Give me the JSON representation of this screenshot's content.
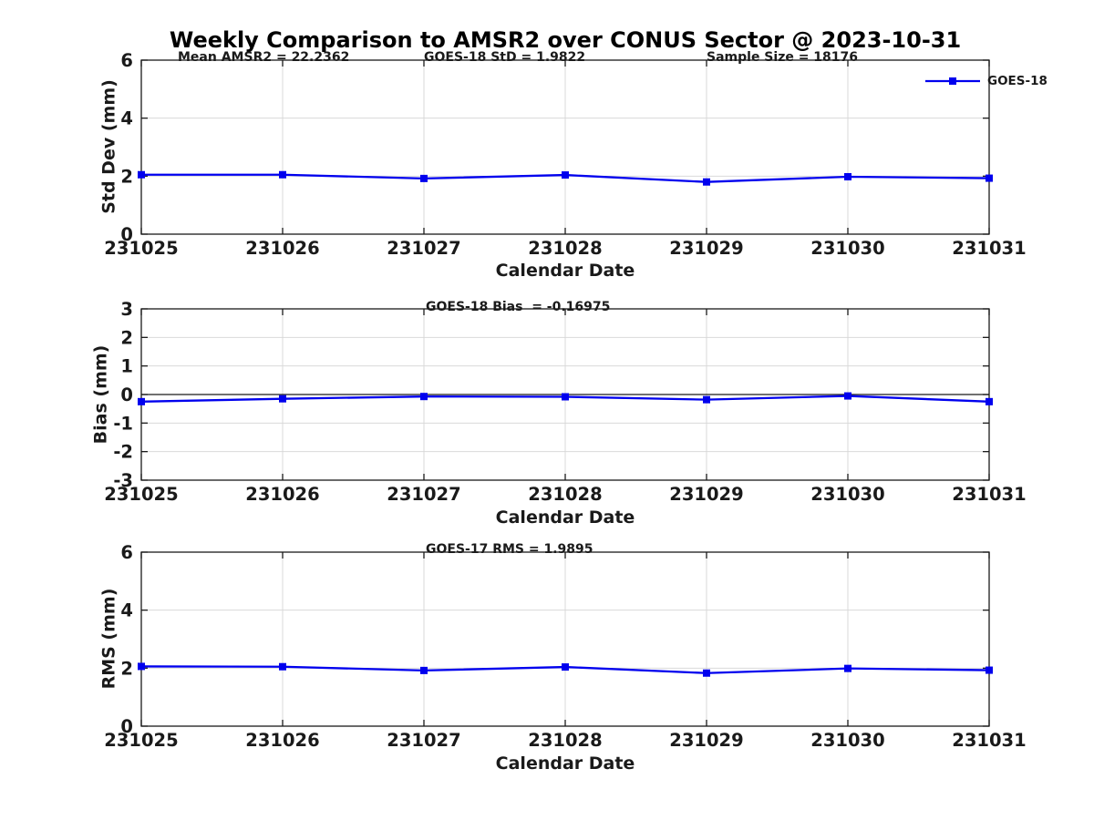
{
  "title": "Weekly Comparison to AMSR2 over CONUS Sector @ 2023-10-31",
  "accent_color": "#0000EE",
  "chart_data": [
    {
      "type": "line",
      "name": "std-dev",
      "categories": [
        "231025",
        "231026",
        "231027",
        "231028",
        "231029",
        "231030",
        "231031"
      ],
      "series": [
        {
          "name": "GOES-18",
          "color": "#0000EE",
          "marker": "square",
          "values": [
            2.05,
            2.05,
            1.92,
            2.04,
            1.8,
            1.98,
            1.93
          ]
        }
      ],
      "annotations": [
        "Mean AMSR2 = 22.2362",
        "GOES-18 StD = 1.9822",
        "Sample Size = 18176"
      ],
      "xlabel": "Calendar Date",
      "ylabel": "Std Dev (mm)",
      "ylim": [
        0,
        6
      ],
      "yticks": [
        0,
        2,
        4,
        6
      ],
      "grid": true,
      "legend_position": "top-right"
    },
    {
      "type": "line",
      "name": "bias",
      "categories": [
        "231025",
        "231026",
        "231027",
        "231028",
        "231029",
        "231030",
        "231031"
      ],
      "series": [
        {
          "name": "GOES-18",
          "color": "#0000EE",
          "marker": "square",
          "values": [
            -0.25,
            -0.15,
            -0.07,
            -0.08,
            -0.18,
            -0.05,
            -0.25
          ]
        }
      ],
      "annotations": [
        "GOES-18 Bias  = -0.16975"
      ],
      "xlabel": "Calendar Date",
      "ylabel": "Bias (mm)",
      "ylim": [
        -3,
        3
      ],
      "yticks": [
        -3,
        -2,
        -1,
        0,
        1,
        2,
        3
      ],
      "zero_line": true,
      "grid": true
    },
    {
      "type": "line",
      "name": "rms",
      "categories": [
        "231025",
        "231026",
        "231027",
        "231028",
        "231029",
        "231030",
        "231031"
      ],
      "series": [
        {
          "name": "GOES-18",
          "color": "#0000EE",
          "marker": "square",
          "values": [
            2.06,
            2.05,
            1.92,
            2.04,
            1.83,
            1.99,
            1.93
          ]
        }
      ],
      "annotations": [
        "GOES-17 RMS = 1.9895"
      ],
      "xlabel": "Calendar Date",
      "ylabel": "RMS (mm)",
      "ylim": [
        0,
        6
      ],
      "yticks": [
        0,
        2,
        4,
        6
      ],
      "grid": true
    }
  ]
}
